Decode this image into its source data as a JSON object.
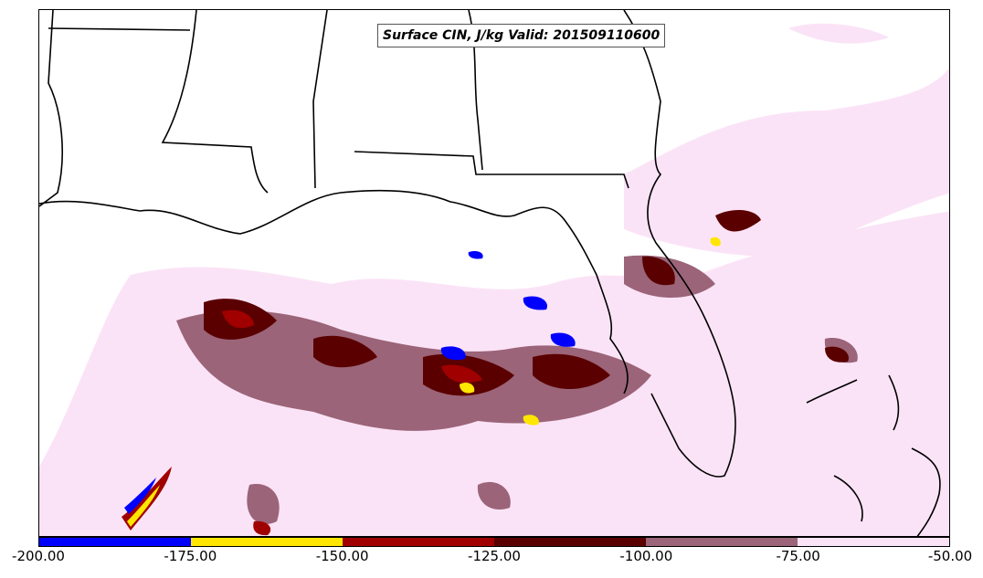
{
  "title": "Surface CIN, J/kg Valid: 201509110600",
  "colorbar": {
    "bins": [
      {
        "from": -200,
        "to": -175,
        "color": "#0000ff"
      },
      {
        "from": -175,
        "to": -150,
        "color": "#ffe600"
      },
      {
        "from": -150,
        "to": -125,
        "color": "#a00000"
      },
      {
        "from": -125,
        "to": -100,
        "color": "#5a0000"
      },
      {
        "from": -100,
        "to": -75,
        "color": "#9b6478"
      },
      {
        "from": -75,
        "to": -50,
        "color": "#fbe3f7"
      }
    ],
    "tick_labels": [
      "-200.00",
      "-175.00",
      "-150.00",
      "-125.00",
      "-100.00",
      "-75.00",
      "-50.00"
    ]
  }
}
